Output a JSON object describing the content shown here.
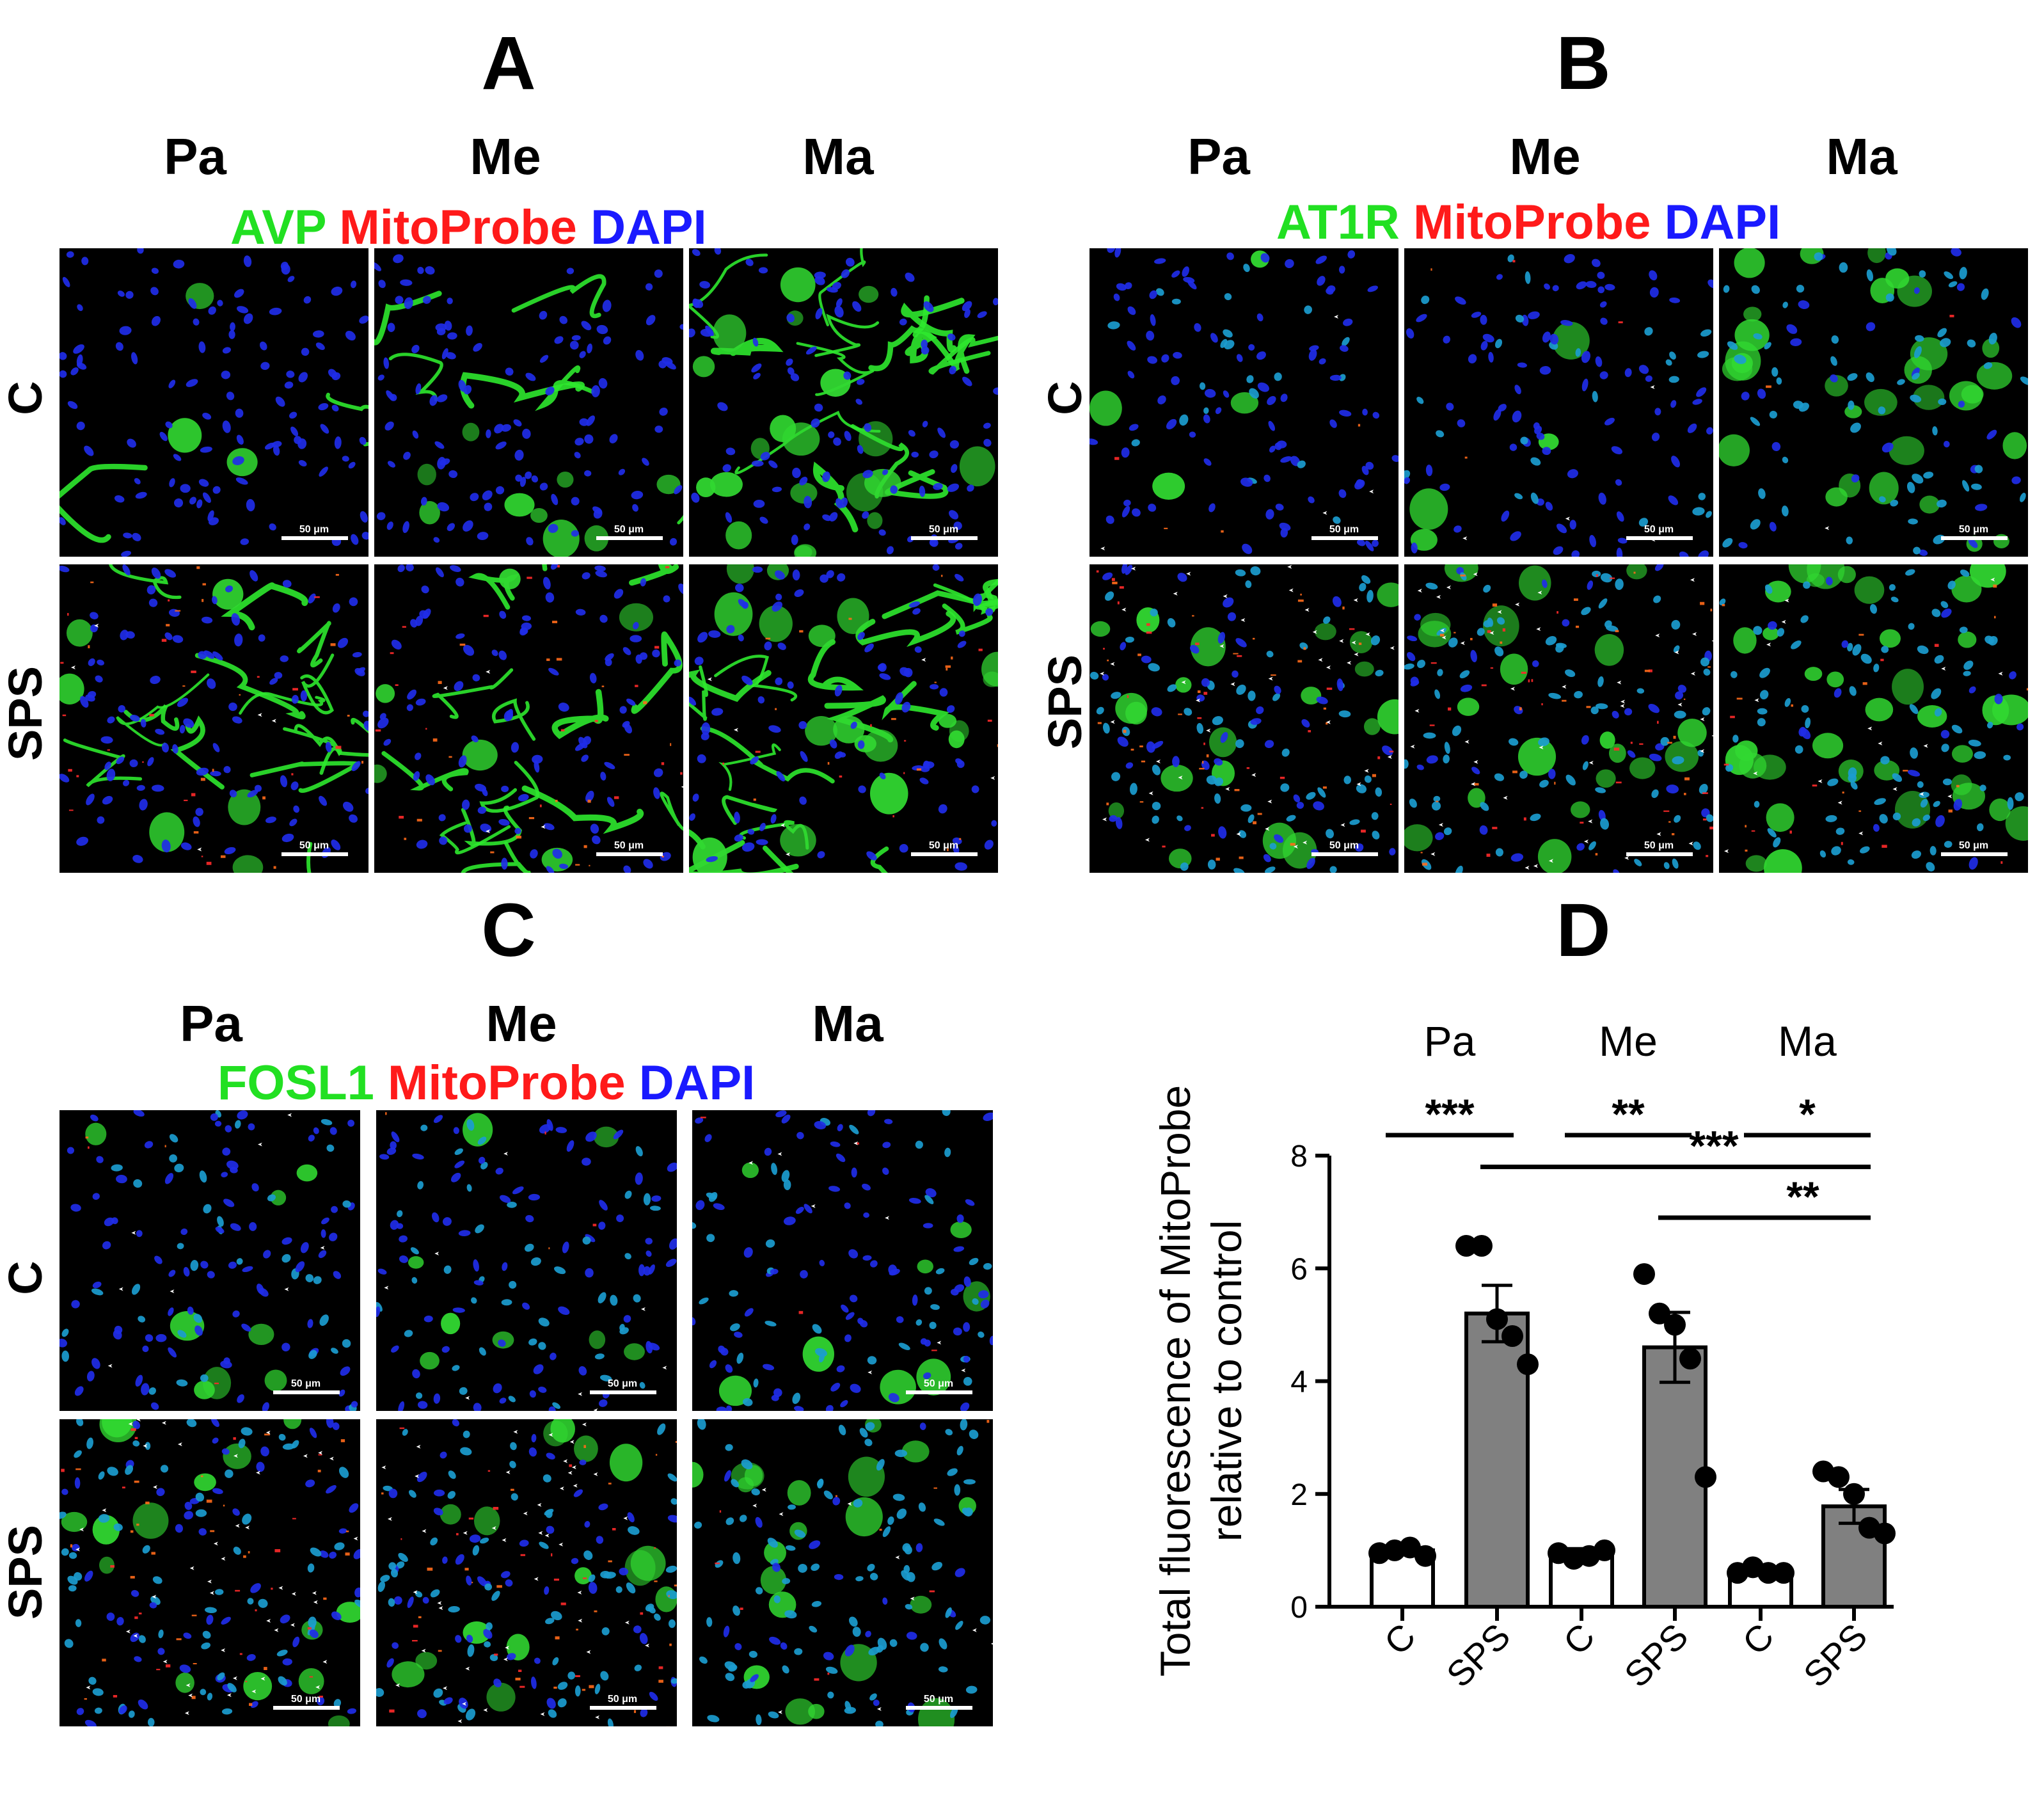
{
  "panels": {
    "A": {
      "letter": "A",
      "columns": [
        "Pa",
        "Me",
        "Ma"
      ],
      "stain": {
        "green": "AVP",
        "red": "MitoProbe",
        "blue": "DAPI"
      },
      "rows": [
        "C",
        "SPS"
      ],
      "scale": "50 μm"
    },
    "B": {
      "letter": "B",
      "columns": [
        "Pa",
        "Me",
        "Ma"
      ],
      "stain": {
        "green": "AT1R",
        "red": "MitoProbe",
        "blue": "DAPI"
      },
      "rows": [
        "C",
        "SPS"
      ],
      "scale": "50 μm"
    },
    "C": {
      "letter": "C",
      "columns": [
        "Pa",
        "Me",
        "Ma"
      ],
      "stain": {
        "green": "FOSL1",
        "red": "MitoProbe",
        "blue": "DAPI"
      },
      "rows": [
        "C",
        "SPS"
      ],
      "scale": "50 μm"
    },
    "D": {
      "letter": "D"
    }
  },
  "colors": {
    "green": "#22e022",
    "red": "#ff1a1a",
    "blue": "#1a1aff",
    "bar_control": "#ffffff",
    "bar_sps": "#808080"
  },
  "chart_data": {
    "type": "bar",
    "title": "",
    "ylabel": "Total fluorescence of MitoProbe relative to control",
    "ylabel_lines": [
      "Total fluorescence of MitoProbe",
      "relative to control"
    ],
    "xlabel": "",
    "ylim": [
      0,
      8
    ],
    "yticks": [
      0,
      2,
      4,
      6,
      8
    ],
    "group_labels": [
      "Pa",
      "Me",
      "Ma"
    ],
    "categories": [
      "C",
      "SPS",
      "C",
      "SPS",
      "C",
      "SPS"
    ],
    "values": [
      1.0,
      5.2,
      0.95,
      4.6,
      0.65,
      1.78
    ],
    "errors": [
      0.05,
      0.5,
      0.08,
      0.62,
      0.05,
      0.3
    ],
    "points": [
      [
        0.95,
        1.0,
        1.05,
        0.9
      ],
      [
        6.4,
        6.4,
        5.1,
        4.8,
        4.3
      ],
      [
        0.95,
        0.85,
        0.9,
        1.0
      ],
      [
        5.9,
        5.2,
        5.0,
        4.4,
        2.3
      ],
      [
        0.6,
        0.7,
        0.6,
        0.6
      ],
      [
        2.4,
        2.3,
        2.0,
        1.4,
        1.3
      ]
    ],
    "significance": [
      {
        "from": 0,
        "to": 1,
        "label": "***",
        "level": "top"
      },
      {
        "from": 2,
        "to": 3,
        "label": "**",
        "level": "top"
      },
      {
        "from": 4,
        "to": 5,
        "label": "*",
        "level": "top"
      },
      {
        "from": 1,
        "to": 5,
        "label": "***",
        "level": 7.8
      },
      {
        "from": 3,
        "to": 5,
        "label": "**",
        "level": 6.9
      }
    ]
  }
}
